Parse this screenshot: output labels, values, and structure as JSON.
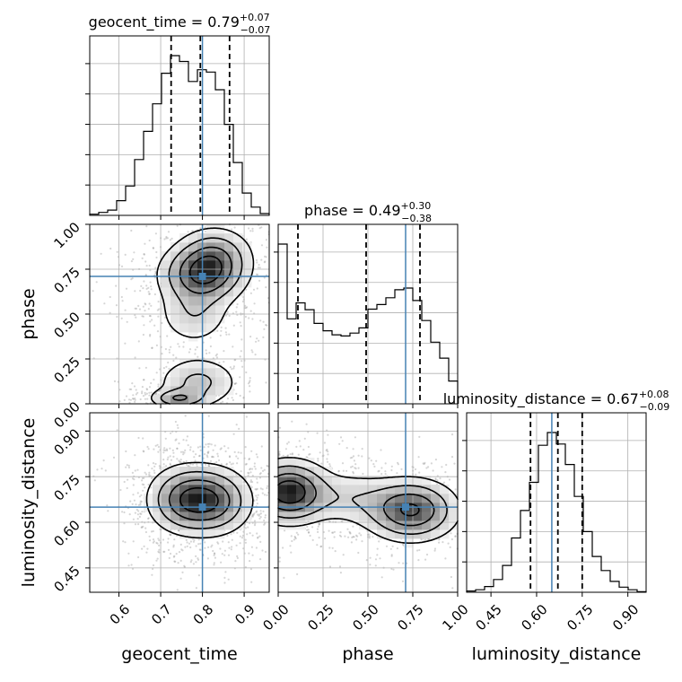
{
  "chart_data": {
    "type": "corner",
    "parameters": [
      "geocent_time",
      "phase",
      "luminosity_distance"
    ],
    "truths": {
      "geocent_time": 0.8,
      "phase": 0.71,
      "luminosity_distance": 0.65
    },
    "quantiles": {
      "geocent_time": [
        0.725,
        0.795,
        0.865
      ],
      "phase": [
        0.11,
        0.49,
        0.79
      ],
      "luminosity_distance": [
        0.58,
        0.67,
        0.75
      ]
    },
    "titles": [
      {
        "param": "geocent_time",
        "prefix": "geocent_time = ",
        "median": "0.79",
        "plus": "+0.07",
        "minus": "−0.07"
      },
      {
        "param": "phase",
        "prefix": "phase = ",
        "median": "0.49",
        "plus": "+0.30",
        "minus": "−0.38"
      },
      {
        "param": "luminosity_distance",
        "prefix": "luminosity_distance = ",
        "median": "0.67",
        "plus": "+0.08",
        "minus": "−0.09"
      }
    ],
    "axis_labels": {
      "geocent_time": "geocent_time",
      "phase": "phase",
      "luminosity_distance": "luminosity_distance"
    },
    "ranges": {
      "geocent_time": [
        0.53,
        0.96
      ],
      "phase": [
        0.0,
        1.0
      ],
      "luminosity_distance": [
        0.37,
        0.96
      ]
    },
    "ticks": {
      "geocent_time": [
        0.6,
        0.7,
        0.8,
        0.9
      ],
      "phase": [
        0.0,
        0.25,
        0.5,
        0.75,
        1.0
      ],
      "luminosity_distance": [
        0.45,
        0.6,
        0.75,
        0.9
      ]
    },
    "tick_labels": {
      "geocent_time": [
        "0.6",
        "0.7",
        "0.8",
        "0.9"
      ],
      "phase": [
        "0.00",
        "0.25",
        "0.50",
        "0.75",
        "1.00"
      ],
      "luminosity_distance": [
        "0.45",
        "0.60",
        "0.75",
        "0.90"
      ]
    },
    "histograms": {
      "geocent_time": {
        "bin_edges": [
          0.53,
          0.5515,
          0.573,
          0.5945,
          0.616,
          0.6375,
          0.659,
          0.6805,
          0.702,
          0.7235,
          0.745,
          0.7665,
          0.788,
          0.8095,
          0.831,
          0.8525,
          0.874,
          0.8955,
          0.917,
          0.9385,
          0.96
        ],
        "counts": [
          2,
          5,
          9,
          25,
          50,
          95,
          143,
          190,
          242,
          272,
          262,
          228,
          248,
          244,
          214,
          155,
          90,
          38,
          14,
          3
        ]
      },
      "phase": {
        "bin_edges": [
          0.0,
          0.05,
          0.1,
          0.15,
          0.2,
          0.25,
          0.3,
          0.35,
          0.4,
          0.45,
          0.5,
          0.55,
          0.6,
          0.65,
          0.7,
          0.75,
          0.8,
          0.85,
          0.9,
          0.95,
          1.0
        ],
        "counts": [
          280,
          149,
          177,
          165,
          141,
          128,
          121,
          119,
          124,
          133,
          166,
          174,
          186,
          200,
          203,
          181,
          146,
          108,
          80,
          40
        ]
      },
      "luminosity_distance": {
        "bin_edges": [
          0.37,
          0.3995,
          0.429,
          0.4585,
          0.488,
          0.5175,
          0.547,
          0.5765,
          0.606,
          0.6355,
          0.665,
          0.6945,
          0.724,
          0.7535,
          0.783,
          0.8125,
          0.842,
          0.8715,
          0.901,
          0.9305,
          0.96
        ],
        "counts": [
          2,
          4,
          9,
          20,
          42,
          85,
          128,
          172,
          230,
          250,
          232,
          200,
          150,
          95,
          56,
          34,
          17,
          8,
          4,
          1
        ]
      }
    },
    "density_2d": [
      {
        "x": "geocent_time",
        "y": "phase",
        "modes": [
          {
            "x": 0.8,
            "y": 0.72,
            "sx": 0.055,
            "sy": 0.09,
            "weight": 1.0
          },
          {
            "x": 0.83,
            "y": 0.83,
            "sx": 0.05,
            "sy": 0.09,
            "weight": 0.55
          },
          {
            "x": 0.78,
            "y": 0.5,
            "sx": 0.05,
            "sy": 0.1,
            "weight": 0.35
          },
          {
            "x": 0.79,
            "y": 0.12,
            "sx": 0.055,
            "sy": 0.08,
            "weight": 0.45
          },
          {
            "x": 0.74,
            "y": 0.03,
            "sx": 0.035,
            "sy": 0.03,
            "weight": 0.6
          }
        ]
      },
      {
        "x": "geocent_time",
        "y": "luminosity_distance",
        "modes": [
          {
            "x": 0.76,
            "y": 0.675,
            "sx": 0.05,
            "sy": 0.06,
            "weight": 1.0
          },
          {
            "x": 0.83,
            "y": 0.67,
            "sx": 0.05,
            "sy": 0.06,
            "weight": 0.9
          }
        ]
      },
      {
        "x": "phase",
        "y": "luminosity_distance",
        "modes": [
          {
            "x": 0.06,
            "y": 0.7,
            "sx": 0.12,
            "sy": 0.055,
            "weight": 1.0
          },
          {
            "x": 0.74,
            "y": 0.64,
            "sx": 0.14,
            "sy": 0.055,
            "weight": 0.85
          },
          {
            "x": 0.4,
            "y": 0.68,
            "sx": 0.15,
            "sy": 0.05,
            "weight": 0.25
          }
        ]
      }
    ],
    "grid": true,
    "truth_color": "#4682b4",
    "hist_color": "#000000",
    "quantile_style": "dashed"
  }
}
